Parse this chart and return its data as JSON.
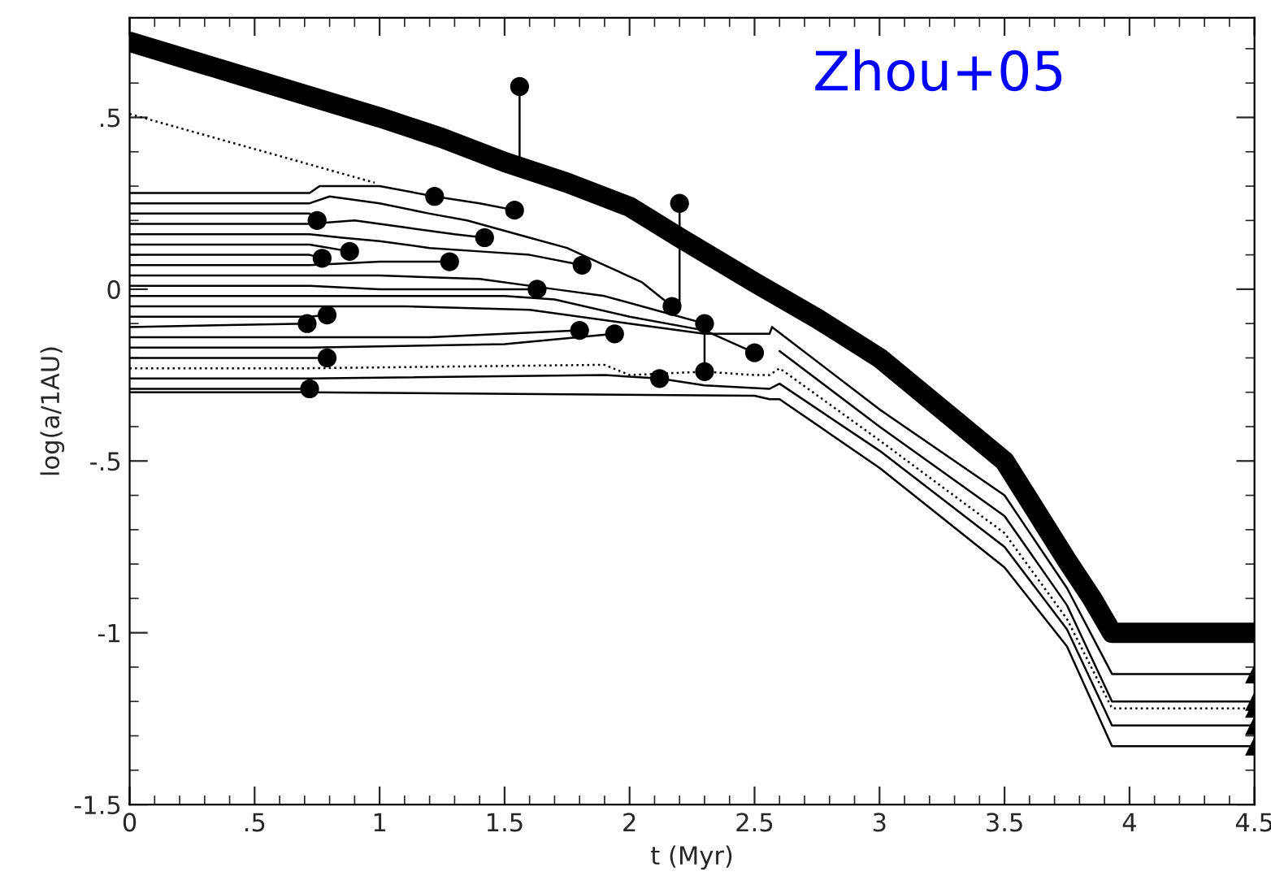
{
  "chart_data": {
    "type": "line",
    "xlabel": "t (Myr)",
    "ylabel": "log(a/1AU)",
    "annotations": [
      "Zhou+05"
    ],
    "xlim": [
      0,
      4.5
    ],
    "ylim": [
      -1.5,
      0.79
    ],
    "xticks": [
      0,
      {
        "value": 0.1,
        "label": null
      },
      {
        "value": 0.2,
        "label": null
      },
      {
        "value": 0.3,
        "label": null
      },
      {
        "value": 0.4,
        "label": null
      },
      {
        "value": 0.5,
        "label": ".5"
      },
      {
        "value": 0.6,
        "label": null
      },
      {
        "value": 0.7,
        "label": null
      },
      {
        "value": 0.8,
        "label": null
      },
      {
        "value": 0.9,
        "label": null
      },
      1,
      {
        "value": 1.1,
        "label": null
      },
      {
        "value": 1.2,
        "label": null
      },
      {
        "value": 1.3,
        "label": null
      },
      {
        "value": 1.4,
        "label": null
      },
      1.5,
      {
        "value": 1.6,
        "label": null
      },
      {
        "value": 1.7,
        "label": null
      },
      {
        "value": 1.8,
        "label": null
      },
      {
        "value": 1.9,
        "label": null
      },
      2,
      {
        "value": 2.1,
        "label": null
      },
      {
        "value": 2.2,
        "label": null
      },
      {
        "value": 2.3,
        "label": null
      },
      {
        "value": 2.4,
        "label": null
      },
      2.5,
      {
        "value": 2.6,
        "label": null
      },
      {
        "value": 2.7,
        "label": null
      },
      {
        "value": 2.8,
        "label": null
      },
      {
        "value": 2.9,
        "label": null
      },
      3,
      {
        "value": 3.1,
        "label": null
      },
      {
        "value": 3.2,
        "label": null
      },
      {
        "value": 3.3,
        "label": null
      },
      {
        "value": 3.4,
        "label": null
      },
      3.5,
      {
        "value": 3.6,
        "label": null
      },
      {
        "value": 3.7,
        "label": null
      },
      {
        "value": 3.8,
        "label": null
      },
      {
        "value": 3.9,
        "label": null
      },
      4,
      {
        "value": 4.1,
        "label": null
      },
      {
        "value": 4.2,
        "label": null
      },
      {
        "value": 4.3,
        "label": null
      },
      {
        "value": 4.4,
        "label": null
      },
      4.5
    ],
    "yticks": [
      -1.5,
      {
        "value": -1.4,
        "label": null
      },
      {
        "value": -1.3,
        "label": null
      },
      {
        "value": -1.2,
        "label": null
      },
      {
        "value": -1.1,
        "label": null
      },
      -1,
      {
        "value": -0.9,
        "label": null
      },
      {
        "value": -0.8,
        "label": null
      },
      {
        "value": -0.7,
        "label": null
      },
      {
        "value": -0.6,
        "label": null
      },
      {
        "value": -0.5,
        "label": "-.5"
      },
      {
        "value": -0.4,
        "label": null
      },
      {
        "value": -0.3,
        "label": null
      },
      {
        "value": -0.2,
        "label": null
      },
      {
        "value": -0.1,
        "label": null
      },
      0,
      {
        "value": 0.1,
        "label": null
      },
      {
        "value": 0.2,
        "label": null
      },
      {
        "value": 0.3,
        "label": null
      },
      {
        "value": 0.4,
        "label": null
      },
      {
        "value": 0.5,
        "label": ".5"
      },
      {
        "value": 0.6,
        "label": null
      },
      {
        "value": 0.7,
        "label": null
      }
    ],
    "grid": false,
    "series": [
      {
        "color": "#000000",
        "x": [
          0,
          0.25,
          0.5,
          0.75,
          1,
          1.25,
          1.5,
          1.75,
          2,
          2.2,
          2.5,
          2.75,
          3,
          3.25,
          3.5,
          3.75,
          3.85,
          3.93,
          4.5
        ],
        "values": [
          0.72,
          0.665,
          0.61,
          0.555,
          0.5,
          0.44,
          0.37,
          0.31,
          0.24,
          0.15,
          0.02,
          -0.085,
          -0.2,
          -0.35,
          -0.5,
          -0.79,
          -0.9,
          -1.0,
          -1.0
        ]
      },
      {
        "color": "#000000",
        "line_style": "dotted",
        "x": [
          0,
          0.98
        ],
        "values": [
          0.51,
          0.31
        ]
      },
      {
        "color": "#000000",
        "x": [
          0,
          0.72,
          0.76,
          1.0,
          1.22,
          1.4,
          1.54
        ],
        "values": [
          0.28,
          0.28,
          0.3,
          0.3,
          0.27,
          0.25,
          0.23
        ]
      },
      {
        "color": "#000000",
        "x": [
          0,
          0.72,
          0.8,
          1.0,
          1.2,
          1.35,
          1.5,
          1.6,
          1.75,
          1.9,
          2.05,
          2.17
        ],
        "values": [
          0.25,
          0.25,
          0.27,
          0.25,
          0.22,
          0.2,
          0.17,
          0.15,
          0.12,
          0.07,
          0.02,
          -0.05
        ]
      },
      {
        "color": "#000000",
        "x": [
          0,
          0.72,
          0.75
        ],
        "values": [
          0.22,
          0.22,
          0.2
        ]
      },
      {
        "color": "#000000",
        "x": [
          0,
          0.72,
          0.9,
          1.1,
          1.3,
          1.42
        ],
        "values": [
          0.19,
          0.19,
          0.2,
          0.18,
          0.16,
          0.15
        ]
      },
      {
        "color": "#000000",
        "x": [
          0,
          0.72,
          0.85,
          1.0,
          1.2,
          1.4,
          1.6,
          1.81
        ],
        "values": [
          0.16,
          0.16,
          0.15,
          0.14,
          0.12,
          0.11,
          0.1,
          0.07
        ]
      },
      {
        "color": "#000000",
        "x": [
          0,
          0.72,
          0.88
        ],
        "values": [
          0.13,
          0.13,
          0.11
        ]
      },
      {
        "color": "#000000",
        "x": [
          0,
          0.72,
          0.77
        ],
        "values": [
          0.1,
          0.1,
          0.09
        ]
      },
      {
        "color": "#000000",
        "x": [
          0,
          0.72,
          1.0,
          1.28
        ],
        "values": [
          0.07,
          0.07,
          0.08,
          0.08
        ]
      },
      {
        "color": "#000000",
        "x": [
          0,
          0.72,
          1.0,
          1.4,
          1.7,
          1.9,
          2.1,
          2.3
        ],
        "values": [
          0.04,
          0.04,
          0.04,
          0.03,
          0.0,
          -0.02,
          -0.06,
          -0.1
        ]
      },
      {
        "color": "#000000",
        "x": [
          0,
          0.72,
          1.0,
          1.3,
          1.63
        ],
        "values": [
          0.01,
          0.01,
          0.0,
          0.0,
          0.0
        ]
      },
      {
        "color": "#000000",
        "x": [
          0,
          0.72,
          1.5,
          1.7,
          2.0,
          2.3,
          2.5
        ],
        "values": [
          -0.02,
          -0.02,
          -0.02,
          -0.03,
          -0.08,
          -0.12,
          -0.185
        ]
      },
      {
        "color": "#000000",
        "x": [
          0,
          0.72,
          1.1,
          1.6,
          2.0,
          2.3,
          2.56,
          2.57,
          3.0,
          3.5,
          3.75,
          3.93,
          4.5
        ],
        "values": [
          -0.05,
          -0.05,
          -0.05,
          -0.06,
          -0.1,
          -0.13,
          -0.13,
          -0.11,
          -0.35,
          -0.6,
          -0.87,
          -1.12,
          -1.12
        ]
      },
      {
        "color": "#000000",
        "x": [
          0,
          0.72,
          0.79
        ],
        "values": [
          -0.08,
          -0.08,
          -0.075
        ]
      },
      {
        "color": "#000000",
        "x": [
          0,
          0.71
        ],
        "values": [
          -0.11,
          -0.1
        ]
      },
      {
        "color": "#000000",
        "x": [
          0,
          0.72,
          1.2,
          1.8
        ],
        "values": [
          -0.14,
          -0.14,
          -0.14,
          -0.12
        ]
      },
      {
        "color": "#000000",
        "x": [
          0,
          0.72,
          1.5,
          1.94
        ],
        "values": [
          -0.17,
          -0.17,
          -0.16,
          -0.13
        ]
      },
      {
        "color": "#000000",
        "x": [
          0,
          0.72,
          0.79
        ],
        "values": [
          -0.2,
          -0.2,
          -0.2
        ]
      },
      {
        "color": "#000000",
        "line_style": "dotted",
        "x": [
          0,
          0.72,
          1.9,
          2.0,
          2.3,
          2.5,
          2.56,
          2.6,
          3.0,
          3.5,
          3.75,
          3.93,
          4.5
        ],
        "values": [
          -0.23,
          -0.23,
          -0.22,
          -0.25,
          -0.24,
          -0.25,
          -0.25,
          -0.23,
          -0.44,
          -0.71,
          -0.96,
          -1.22,
          -1.22
        ]
      },
      {
        "color": "#000000",
        "x": [
          0,
          0.72,
          1.9,
          2.12,
          2.3,
          2.56,
          2.6,
          3.0,
          3.5,
          3.75,
          3.93,
          4.5
        ],
        "values": [
          -0.26,
          -0.26,
          -0.25,
          -0.26,
          -0.28,
          -0.29,
          -0.275,
          -0.47,
          -0.75,
          -0.99,
          -1.27,
          -1.27
        ]
      },
      {
        "color": "#000000",
        "x": [
          0,
          0.72
        ],
        "values": [
          -0.29,
          -0.29
        ]
      },
      {
        "color": "#000000",
        "x": [
          0,
          0.72,
          2.5,
          2.56,
          2.6,
          3.0,
          3.5,
          3.75,
          3.93,
          4.5
        ],
        "values": [
          -0.3,
          -0.3,
          -0.31,
          -0.32,
          -0.32,
          -0.52,
          -0.81,
          -1.04,
          -1.33,
          -1.33
        ]
      },
      {
        "color": "#000000",
        "x": [
          1.56,
          1.56
        ],
        "values": [
          0.59,
          0.36
        ]
      },
      {
        "color": "#000000",
        "x": [
          2.2,
          2.2
        ],
        "values": [
          0.25,
          -0.05
        ]
      },
      {
        "color": "#000000",
        "x": [
          2.3,
          2.3
        ],
        "values": [
          -0.1,
          -0.24
        ]
      },
      {
        "color": "#000000",
        "x": [
          2.6,
          3.0,
          3.5,
          3.75,
          3.93,
          4.5
        ],
        "values": [
          -0.18,
          -0.4,
          -0.66,
          -0.92,
          -1.2,
          -1.2
        ]
      },
      {
        "type": "scatter",
        "marker": "circle",
        "color": "#000000",
        "x": [
          0.75,
          0.71,
          0.72,
          0.77,
          0.79,
          0.79,
          0.88,
          1.22,
          1.28,
          1.42,
          1.54,
          1.56,
          1.63,
          1.81,
          1.8,
          1.94,
          2.12,
          2.2,
          2.17,
          2.3,
          2.3,
          2.5
        ],
        "values": [
          0.2,
          -0.1,
          -0.29,
          0.09,
          -0.075,
          -0.2,
          0.11,
          0.27,
          0.08,
          0.15,
          0.23,
          0.59,
          0.0,
          0.07,
          -0.12,
          -0.13,
          -0.26,
          0.25,
          -0.05,
          -0.1,
          -0.24,
          -0.185
        ]
      },
      {
        "type": "scatter",
        "marker": "triangle",
        "color": "#000000",
        "x": [
          4.5,
          4.5,
          4.5,
          4.5,
          4.5
        ],
        "values": [
          -1.12,
          -1.2,
          -1.22,
          -1.27,
          -1.33
        ]
      }
    ]
  }
}
